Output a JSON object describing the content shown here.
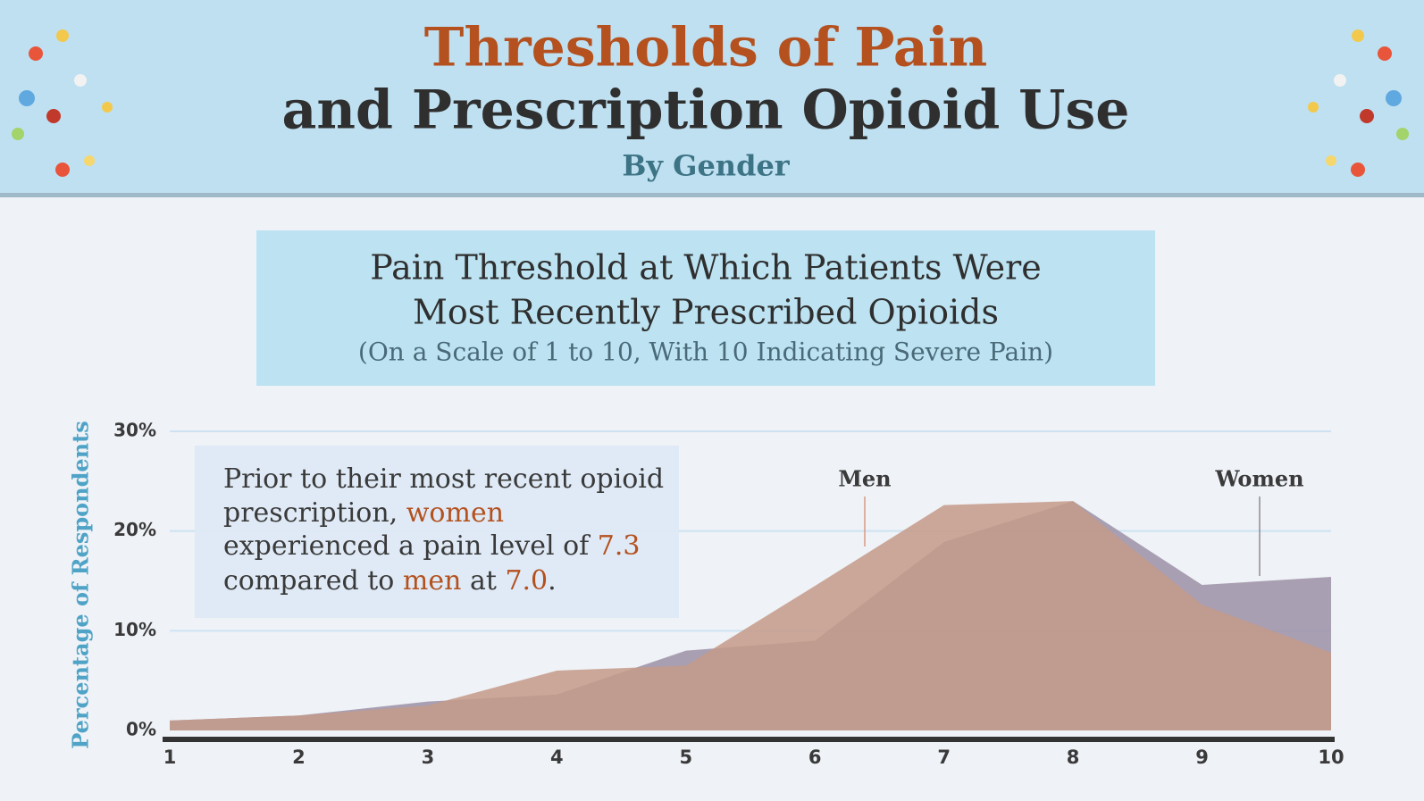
{
  "chart_data": {
    "type": "area",
    "title": "Thresholds of Pain",
    "title_line2": "and Prescription Opioid Use",
    "subtitle": "By Gender",
    "chart_title": [
      "Pain Threshold at Which Patients Were",
      "Most Recently Prescribed Opioids"
    ],
    "chart_subtitle": "(On a Scale of 1 to 10, With 10 Indicating Severe Pain)",
    "ylabel": "Percentage of Respondents",
    "note": [
      "Prior to their most recent opioid",
      "prescription, ",
      "women",
      "experienced a pain level of ",
      "7.3",
      "compared to ",
      "men",
      " at ",
      "7.0",
      "."
    ],
    "x": [
      1,
      2,
      3,
      4,
      5,
      6,
      7,
      8,
      9,
      10
    ],
    "xlim": [
      1,
      10
    ],
    "xticks": [
      1,
      2,
      3,
      4,
      5,
      6,
      7,
      8,
      9,
      10
    ],
    "ylim": [
      0,
      30
    ],
    "yticks": [
      {
        "value": 0,
        "label": "0%"
      },
      {
        "value": 10,
        "label": "10%"
      },
      {
        "value": 20,
        "label": "20%"
      },
      {
        "value": 30,
        "label": "30%"
      }
    ],
    "grid": true,
    "series": [
      {
        "name": "Women",
        "color": "#9c90a6",
        "values": [
          1,
          1.5,
          2.9,
          3.6,
          8,
          9,
          18.9,
          23,
          14.6,
          15.4
        ]
      },
      {
        "name": "Men",
        "color": "#c49a88",
        "values": [
          1,
          1.5,
          2.5,
          6,
          6.5,
          14.5,
          22.6,
          23,
          12.6,
          7.8
        ]
      }
    ]
  }
}
